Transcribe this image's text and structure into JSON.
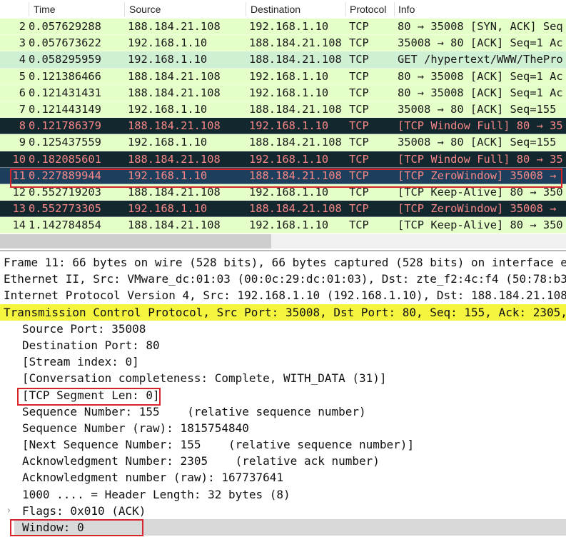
{
  "columns": {
    "no": "",
    "time": "Time",
    "source": "Source",
    "destination": "Destination",
    "protocol": "Protocol",
    "info": "Info"
  },
  "colors": {
    "green": "#e4ffc7",
    "green_alt": "#d0f0d4",
    "dark": "#12272e",
    "dark_text": "#f78787",
    "selected": "#1d3f5c",
    "selected_text": "#f78787",
    "highlight": "#f5f540",
    "highlight_box": "#d9232a"
  },
  "packets": [
    {
      "no": "2",
      "time": "0.057629288",
      "source": "188.184.21.108",
      "destination": "192.168.1.10",
      "protocol": "TCP",
      "info": "80 → 35008 [SYN, ACK] Seq",
      "style": "green"
    },
    {
      "no": "3",
      "time": "0.057673622",
      "source": "192.168.1.10",
      "destination": "188.184.21.108",
      "protocol": "TCP",
      "info": "35008 → 80 [ACK] Seq=1 Ac",
      "style": "green"
    },
    {
      "no": "4",
      "time": "0.058295959",
      "source": "192.168.1.10",
      "destination": "188.184.21.108",
      "protocol": "TCP",
      "info": "GET /hypertext/WWW/ThePro",
      "style": "green_alt"
    },
    {
      "no": "5",
      "time": "0.121386466",
      "source": "188.184.21.108",
      "destination": "192.168.1.10",
      "protocol": "TCP",
      "info": "80 → 35008 [ACK] Seq=1 Ac",
      "style": "green"
    },
    {
      "no": "6",
      "time": "0.121431431",
      "source": "188.184.21.108",
      "destination": "192.168.1.10",
      "protocol": "TCP",
      "info": "80 → 35008 [ACK] Seq=1 Ac",
      "style": "green"
    },
    {
      "no": "7",
      "time": "0.121443149",
      "source": "192.168.1.10",
      "destination": "188.184.21.108",
      "protocol": "TCP",
      "info": "35008 → 80 [ACK] Seq=155",
      "style": "green"
    },
    {
      "no": "8",
      "time": "0.121786379",
      "source": "188.184.21.108",
      "destination": "192.168.1.10",
      "protocol": "TCP",
      "info": "[TCP Window Full] 80 → 35",
      "style": "dark"
    },
    {
      "no": "9",
      "time": "0.125437559",
      "source": "192.168.1.10",
      "destination": "188.184.21.108",
      "protocol": "TCP",
      "info": "35008 → 80 [ACK] Seq=155",
      "style": "green"
    },
    {
      "no": "10",
      "time": "0.182085601",
      "source": "188.184.21.108",
      "destination": "192.168.1.10",
      "protocol": "TCP",
      "info": "[TCP Window Full] 80 → 35",
      "style": "dark"
    },
    {
      "no": "11",
      "time": "0.227889944",
      "source": "192.168.1.10",
      "destination": "188.184.21.108",
      "protocol": "TCP",
      "info": "[TCP ZeroWindow] 35008 →",
      "style": "selected"
    },
    {
      "no": "12",
      "time": "0.552719203",
      "source": "188.184.21.108",
      "destination": "192.168.1.10",
      "protocol": "TCP",
      "info": "[TCP Keep-Alive] 80 → 350",
      "style": "green"
    },
    {
      "no": "13",
      "time": "0.552773305",
      "source": "192.168.1.10",
      "destination": "188.184.21.108",
      "protocol": "TCP",
      "info": "[TCP ZeroWindow] 35008 →",
      "style": "dark"
    },
    {
      "no": "14",
      "time": "1.142784854",
      "source": "188.184.21.108",
      "destination": "192.168.1.10",
      "protocol": "TCP",
      "info": "[TCP Keep-Alive] 80 → 350",
      "style": "green"
    }
  ],
  "details": [
    {
      "text": "Frame 11: 66 bytes on wire (528 bits), 66 bytes captured (528 bits) on interface et",
      "kind": "top"
    },
    {
      "text": "Ethernet II, Src: VMware_dc:01:03 (00:0c:29:dc:01:03), Dst: zte_f2:4c:f4 (50:78:b3:",
      "kind": "top"
    },
    {
      "text": "Internet Protocol Version 4, Src: 192.168.1.10 (192.168.1.10), Dst: 188.184.21.108",
      "kind": "top"
    },
    {
      "text": "Transmission Control Protocol, Src Port: 35008, Dst Port: 80, Seq: 155, Ack: 2305,",
      "kind": "tcp"
    },
    {
      "text": "Source Port: 35008",
      "kind": "ind"
    },
    {
      "text": "Destination Port: 80",
      "kind": "ind"
    },
    {
      "text": "[Stream index: 0]",
      "kind": "ind"
    },
    {
      "text": "[Conversation completeness: Complete, WITH_DATA (31)]",
      "kind": "ind"
    },
    {
      "text": "[TCP Segment Len: 0]",
      "kind": "ind"
    },
    {
      "text": "Sequence Number: 155    (relative sequence number)",
      "kind": "ind"
    },
    {
      "text": "Sequence Number (raw): 1815754840",
      "kind": "ind"
    },
    {
      "text": "[Next Sequence Number: 155    (relative sequence number)]",
      "kind": "ind"
    },
    {
      "text": "Acknowledgment Number: 2305    (relative ack number)",
      "kind": "ind"
    },
    {
      "text": "Acknowledgment number (raw): 167737641",
      "kind": "ind"
    },
    {
      "text": "1000 .... = Header Length: 32 bytes (8)",
      "kind": "ind"
    },
    {
      "text": "Flags: 0x010 (ACK)",
      "kind": "flags"
    },
    {
      "text": "Window: 0",
      "kind": "win"
    }
  ]
}
